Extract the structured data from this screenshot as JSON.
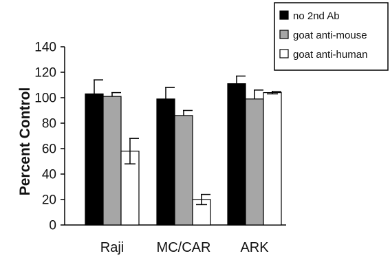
{
  "chart_data": {
    "type": "bar",
    "title": "",
    "xlabel": "",
    "ylabel": "Percent Control",
    "ylim": [
      0,
      140
    ],
    "yticks": [
      0,
      20,
      40,
      60,
      80,
      100,
      120,
      140
    ],
    "grid": false,
    "legend_position": "top-right",
    "categories": [
      "Raji",
      "MC/CAR",
      "ARK"
    ],
    "series": [
      {
        "name": "no 2nd Ab",
        "color": "#000000",
        "values": [
          103,
          99,
          111
        ],
        "errors": [
          11,
          9,
          6
        ]
      },
      {
        "name": "goat anti-mouse",
        "color": "#a6a6a6",
        "values": [
          101,
          86,
          99
        ],
        "errors": [
          3,
          4,
          7
        ]
      },
      {
        "name": "goat anti-human",
        "color": "#ffffff",
        "values": [
          58,
          20,
          104
        ],
        "errors": [
          10,
          4,
          1
        ]
      }
    ]
  }
}
